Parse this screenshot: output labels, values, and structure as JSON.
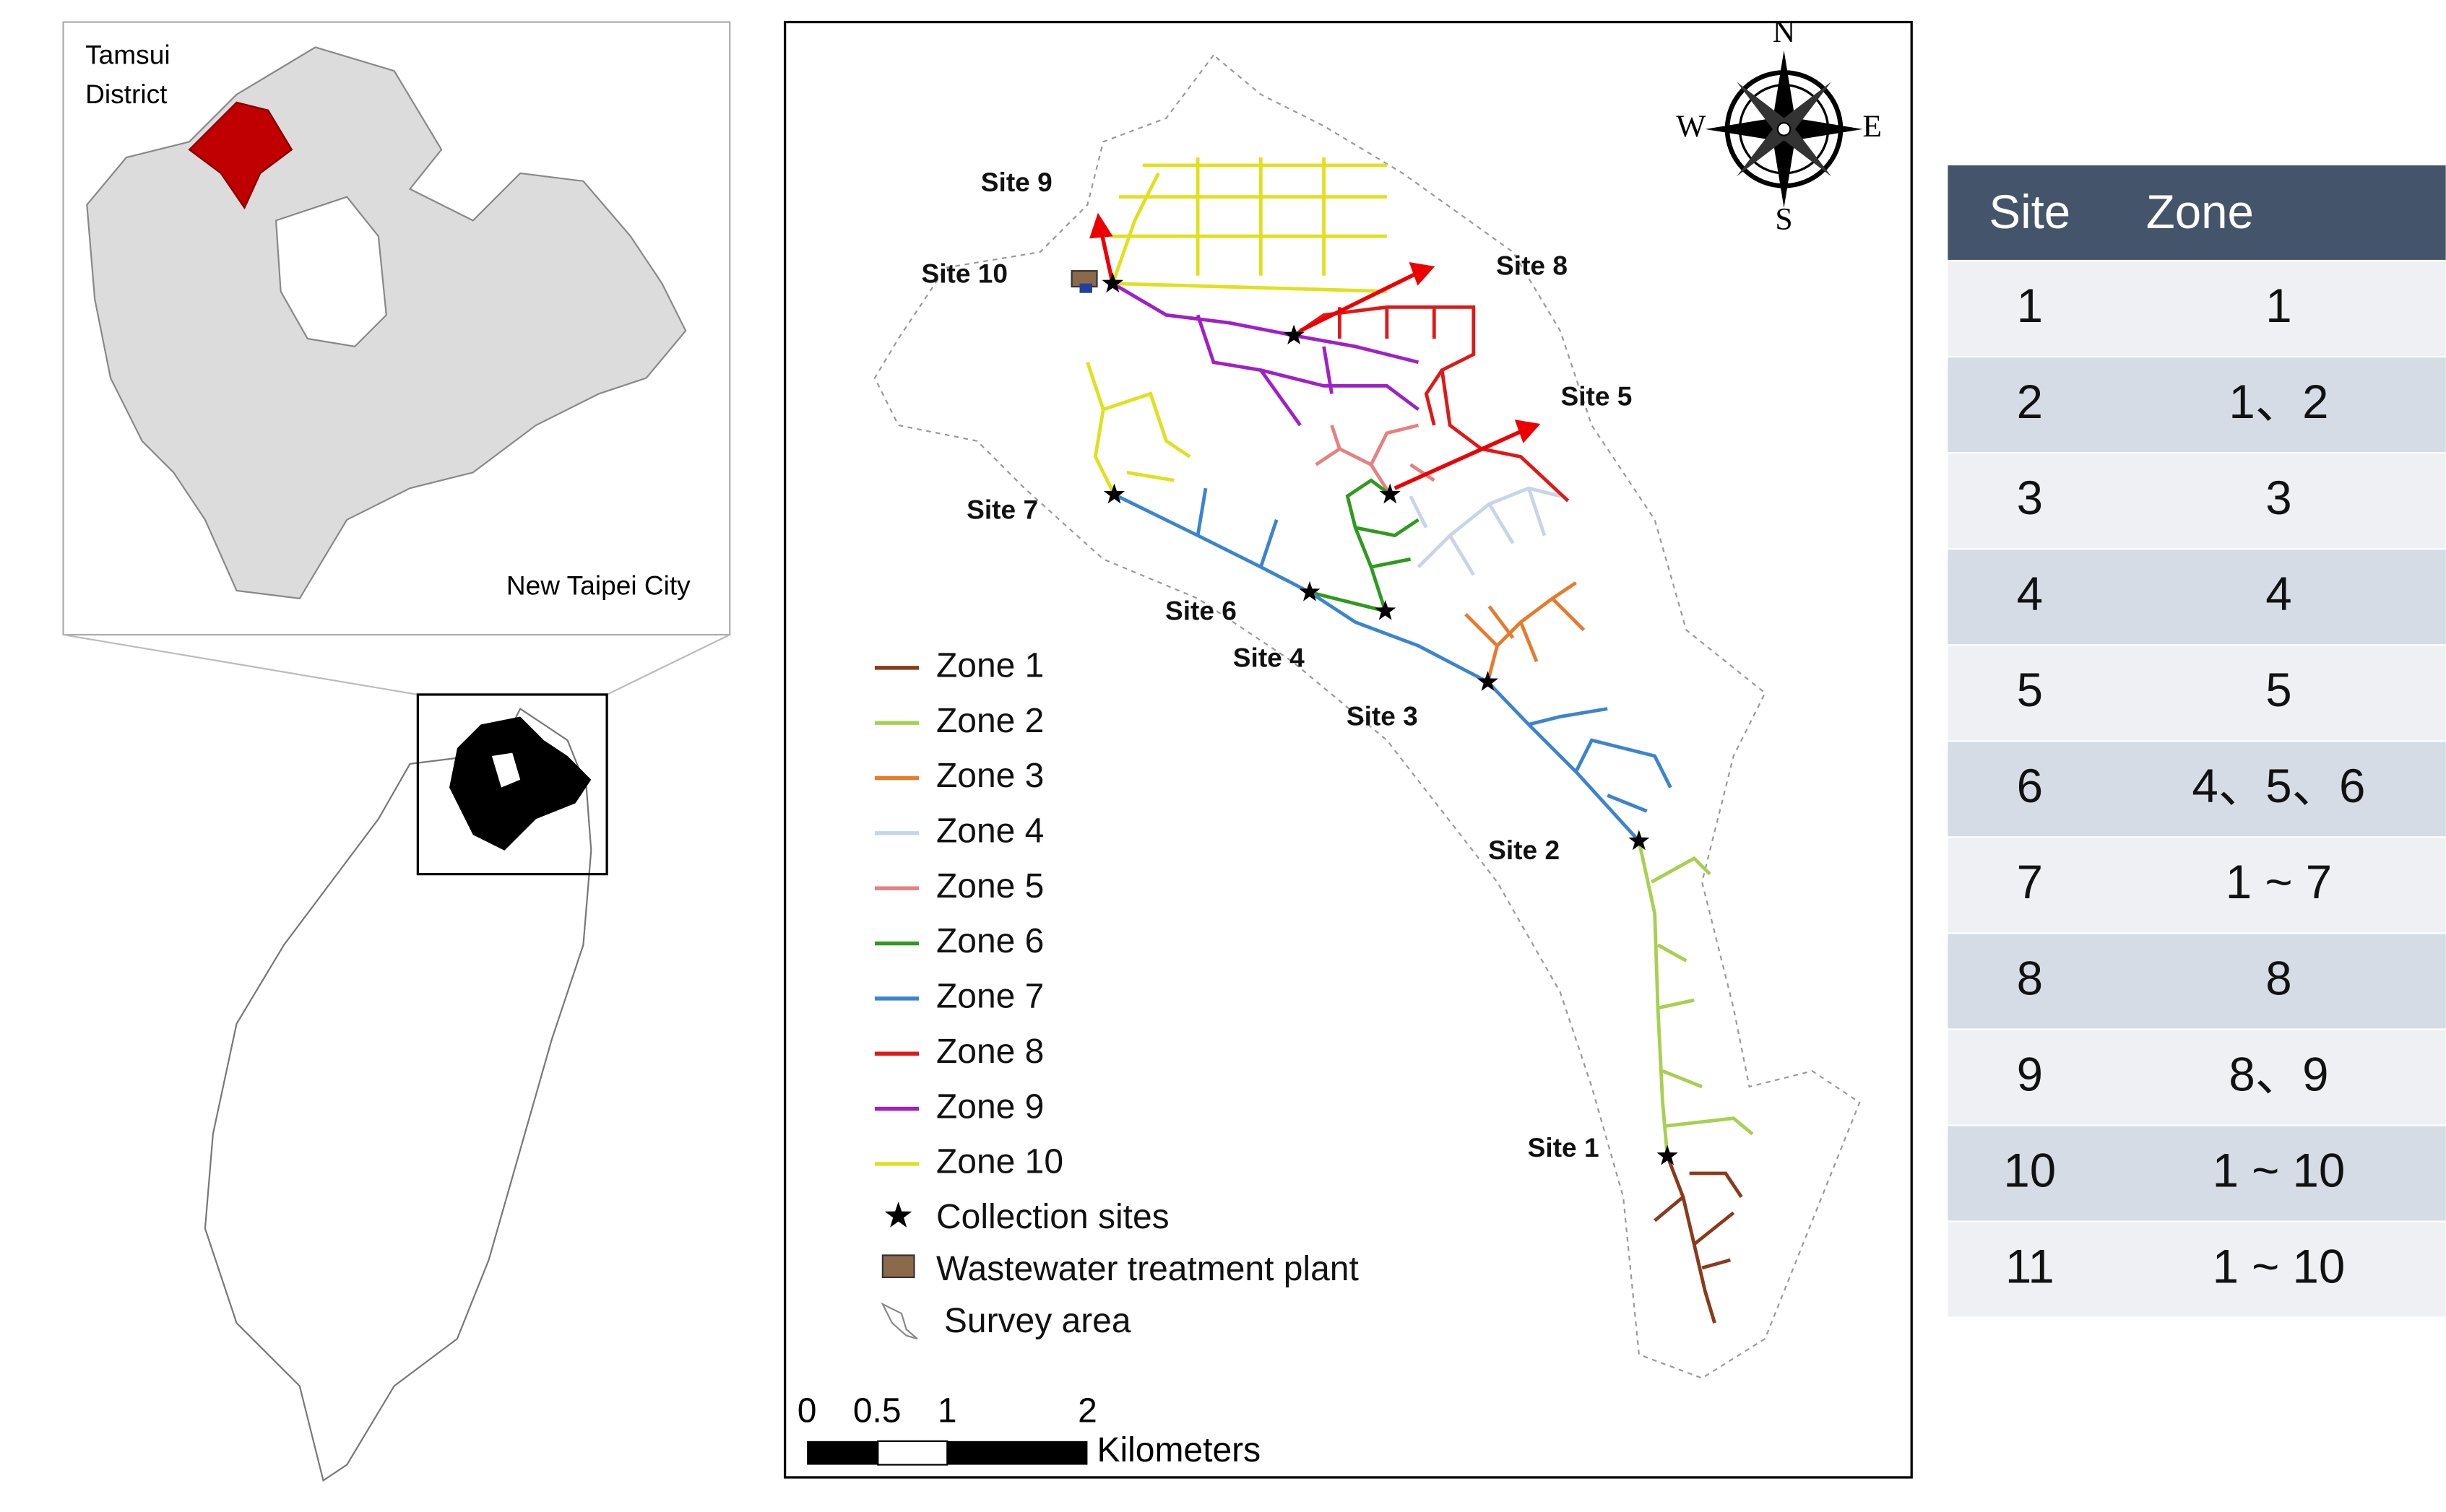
{
  "inset": {
    "district_label": [
      "Tamsui",
      "District"
    ],
    "city_label": "New Taipei City"
  },
  "map": {
    "compass": {
      "north": "N",
      "east": "E",
      "south": "S",
      "west": "W"
    },
    "site_labels": [
      "Site 1",
      "Site 2",
      "Site 3",
      "Site 4",
      "Site 5",
      "Site 6",
      "Site 7",
      "Site 8",
      "Site 9",
      "Site 10"
    ],
    "legend": [
      {
        "label": "Zone 1",
        "color": "#8b3a1a"
      },
      {
        "label": "Zone 2",
        "color": "#a8d050"
      },
      {
        "label": "Zone 3",
        "color": "#e87a2a"
      },
      {
        "label": "Zone 4",
        "color": "#c8d4ea"
      },
      {
        "label": "Zone 5",
        "color": "#e88080"
      },
      {
        "label": "Zone 6",
        "color": "#2e9a1e"
      },
      {
        "label": "Zone 7",
        "color": "#3a84d0"
      },
      {
        "label": "Zone 8",
        "color": "#e01818"
      },
      {
        "label": "Zone 9",
        "color": "#a020c8"
      },
      {
        "label": "Zone 10",
        "color": "#e0e020"
      },
      {
        "label": "Collection sites"
      },
      {
        "label": "Wastewater treatment plant"
      },
      {
        "label": "Survey area"
      }
    ],
    "scale": {
      "ticks": [
        0,
        0.5,
        1,
        2
      ],
      "unit": "Kilometers"
    }
  },
  "table": {
    "header": [
      "Site",
      "Zone"
    ],
    "rows": [
      [
        "1",
        "1"
      ],
      [
        "2",
        "1、2"
      ],
      [
        "3",
        "3"
      ],
      [
        "4",
        "4"
      ],
      [
        "5",
        "5"
      ],
      [
        "6",
        "4、5、6"
      ],
      [
        "7",
        "1 ~ 7"
      ],
      [
        "8",
        "8"
      ],
      [
        "9",
        "8、9"
      ],
      [
        "10",
        "1 ~ 10"
      ],
      [
        "11",
        "1 ~ 10"
      ]
    ]
  }
}
